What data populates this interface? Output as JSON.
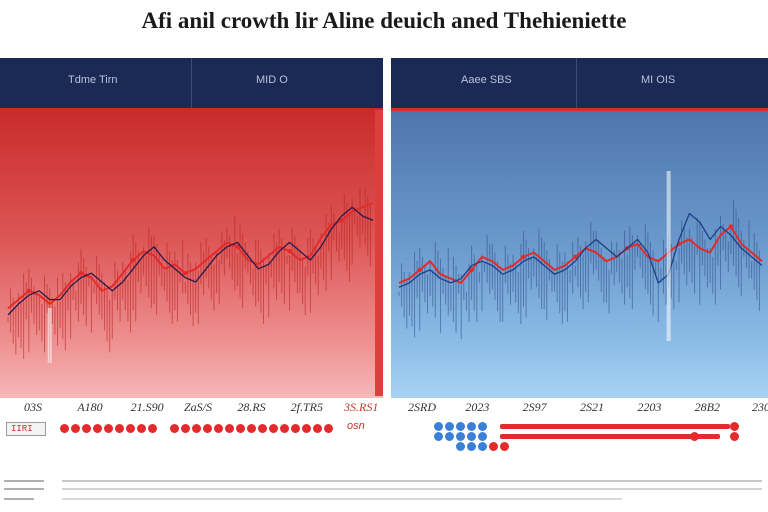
{
  "title": "Afi anil crowth lir Aline deuich aned Thehieniette",
  "left_panel": {
    "header_a": "Tdme Tirn",
    "header_b": "MID O"
  },
  "right_panel": {
    "header_a": "Aaee SBS",
    "header_b": "MI OIS"
  },
  "colors": {
    "red": "#e32b2b",
    "navy": "#1b2a55",
    "blue_line": "#1e3f86"
  },
  "chart_data": [
    {
      "type": "line",
      "title": "Tdme Tirn",
      "x": [
        0,
        1,
        2,
        3,
        4,
        5,
        6,
        7,
        8,
        9,
        10,
        11,
        12,
        13,
        14,
        15,
        16,
        17,
        18,
        19,
        20,
        21,
        22,
        23,
        24,
        25,
        26,
        27,
        28,
        29,
        30,
        31,
        32,
        33,
        34,
        35
      ],
      "series": [
        {
          "name": "red",
          "values": [
            18,
            22,
            26,
            24,
            20,
            24,
            30,
            34,
            32,
            26,
            28,
            34,
            40,
            44,
            42,
            36,
            38,
            34,
            36,
            40,
            44,
            48,
            46,
            40,
            38,
            42,
            46,
            44,
            40,
            42,
            50,
            56,
            58,
            62,
            64,
            66
          ]
        },
        {
          "name": "navy",
          "values": [
            15,
            20,
            24,
            26,
            22,
            22,
            28,
            32,
            34,
            30,
            26,
            30,
            36,
            42,
            46,
            40,
            36,
            32,
            30,
            36,
            42,
            46,
            48,
            42,
            36,
            38,
            44,
            48,
            44,
            40,
            46,
            54,
            60,
            64,
            60,
            58
          ]
        }
      ],
      "ylim": [
        0,
        100
      ],
      "xtick_labels": [
        "03S",
        "A180",
        "21.S90",
        "ZaS/S",
        "28.RS",
        "2f.TR5",
        "3S.RS1"
      ]
    },
    {
      "type": "line",
      "title": "Aaee SBS",
      "x": [
        0,
        1,
        2,
        3,
        4,
        5,
        6,
        7,
        8,
        9,
        10,
        11,
        12,
        13,
        14,
        15,
        16,
        17,
        18,
        19,
        20,
        21,
        22,
        23,
        24,
        25,
        26,
        27,
        28,
        29,
        30,
        31,
        32,
        33,
        34,
        35
      ],
      "series": [
        {
          "name": "red",
          "values": [
            30,
            32,
            36,
            40,
            34,
            32,
            30,
            36,
            42,
            40,
            36,
            38,
            42,
            44,
            40,
            36,
            38,
            42,
            46,
            44,
            40,
            42,
            46,
            48,
            42,
            40,
            44,
            48,
            50,
            46,
            44,
            52,
            56,
            48,
            44,
            40
          ]
        },
        {
          "name": "navy",
          "values": [
            28,
            30,
            34,
            36,
            32,
            30,
            32,
            38,
            40,
            38,
            34,
            36,
            40,
            42,
            38,
            34,
            36,
            40,
            46,
            50,
            46,
            42,
            46,
            50,
            44,
            30,
            34,
            50,
            62,
            58,
            50,
            56,
            52,
            46,
            42,
            38
          ]
        }
      ],
      "ylim": [
        0,
        100
      ],
      "xtick_labels": [
        "2SRD",
        "2023",
        "2S97",
        "2S21",
        "2203",
        "28B2",
        "230"
      ]
    }
  ],
  "legend": {
    "label": "osn"
  },
  "footer": {
    "code_left": "IIRI",
    "code_mid": ""
  }
}
